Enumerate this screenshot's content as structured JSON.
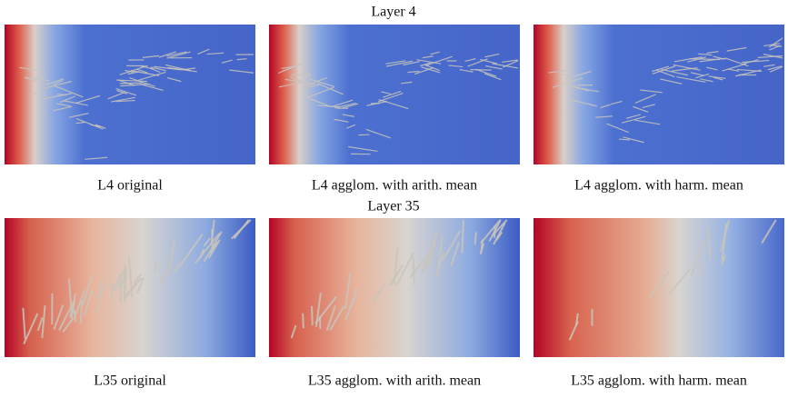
{
  "rows": [
    {
      "title": "Layer 4",
      "panels": [
        {
          "caption": "L4 original"
        },
        {
          "caption": "L4 agglom. with arith. mean"
        },
        {
          "caption": "L4 agglom. with harm. mean"
        }
      ]
    },
    {
      "title": "Layer 35",
      "panels": [
        {
          "caption": "L35 original"
        },
        {
          "caption": "L35 agglom. with arith. mean"
        },
        {
          "caption": "L35 agglom. with harm. mean"
        }
      ]
    }
  ]
}
